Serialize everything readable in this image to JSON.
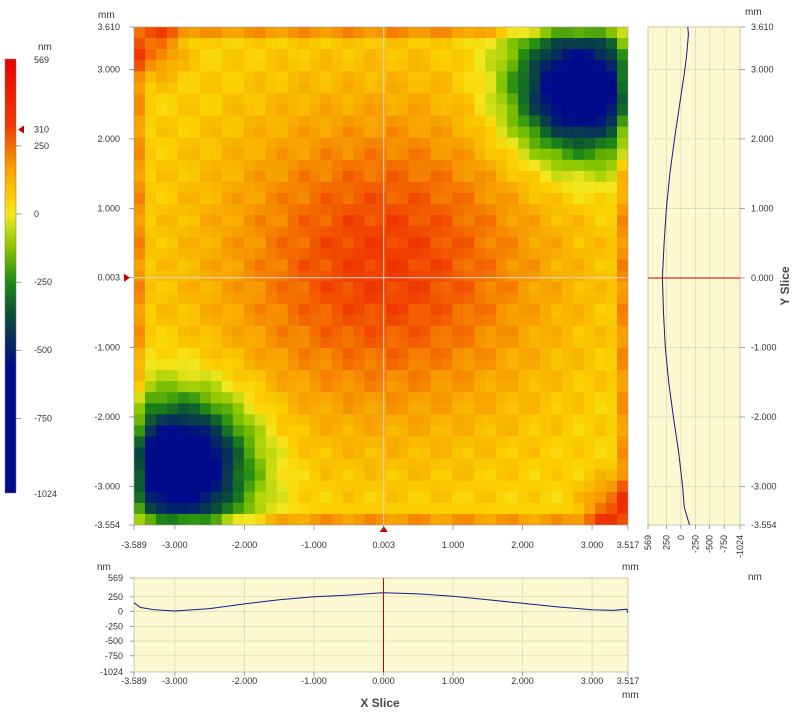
{
  "colors": {
    "panel_bg": "#fbf8d2",
    "profile_line": "#1a1a8a",
    "cursor_line": "#cc0000",
    "grid": "#d8d2a0",
    "axis": "#888888"
  },
  "colorbar": {
    "unit": "nm",
    "max_label": "569",
    "min_label": "-1024",
    "marker_label": "310",
    "ticks": [
      {
        "value": 250,
        "label": "250"
      },
      {
        "value": 0,
        "label": "0"
      },
      {
        "value": -250,
        "label": "-250"
      },
      {
        "value": -500,
        "label": "-500"
      },
      {
        "value": -750,
        "label": "-750"
      }
    ],
    "stops": [
      {
        "value": 569,
        "color": "#e60000"
      },
      {
        "value": 330,
        "color": "#f03a00"
      },
      {
        "value": 180,
        "color": "#f79a00"
      },
      {
        "value": 60,
        "color": "#fbd000"
      },
      {
        "value": 0,
        "color": "#f3e820"
      },
      {
        "value": -120,
        "color": "#8cc800"
      },
      {
        "value": -250,
        "color": "#1e8a14"
      },
      {
        "value": -380,
        "color": "#0a4a3a"
      },
      {
        "value": -560,
        "color": "#000a8a"
      },
      {
        "value": -1024,
        "color": "#000a8a"
      }
    ]
  },
  "chart_data": [
    {
      "type": "heatmap",
      "title": "",
      "xunit": "mm",
      "yunit": "mm",
      "xlim": [
        -3.589,
        3.517
      ],
      "ylim": [
        -3.554,
        3.61
      ],
      "zlim": [
        -1024,
        569
      ],
      "x_tick_labels": [
        "-3.589",
        "-3.000",
        "-2.000",
        "-1.000",
        "0.003",
        "1.000",
        "2.000",
        "3.000",
        "3.517"
      ],
      "y_tick_labels": [
        "3.610",
        "3.000",
        "2.000",
        "1.000",
        "0.003",
        "-1.000",
        "-2.000",
        "-3.000",
        "-3.554"
      ],
      "cursor": {
        "x": 0.003,
        "y": 0.003
      },
      "surface": {
        "center": {
          "x": 0.0,
          "y": 0.2,
          "z": 330
        },
        "plateau_z": 40,
        "low_regions": [
          {
            "x": -2.9,
            "y": -2.7,
            "z": -800
          },
          {
            "x": 2.8,
            "y": 2.7,
            "z": -760
          }
        ],
        "high_corners": [
          {
            "x": 3.3,
            "y": -3.3,
            "z": 280
          },
          {
            "x": -3.3,
            "y": 3.3,
            "z": 250
          }
        ]
      }
    },
    {
      "type": "line",
      "title": "X Slice",
      "xlabel": "mm",
      "ylabel": "nm",
      "xlim": [
        -3.589,
        3.517
      ],
      "ylim": [
        -1024,
        569
      ],
      "x_tick_labels": [
        "-3.589",
        "-3.000",
        "-2.000",
        "-1.000",
        "0.000",
        "1.000",
        "2.000",
        "3.000",
        "3.517"
      ],
      "y_tick_labels": [
        "569",
        "250",
        "0",
        "-250",
        "-500",
        "-750",
        "-1024"
      ],
      "x": [
        -3.589,
        -3.5,
        -3.3,
        -3.0,
        -2.5,
        -2.0,
        -1.5,
        -1.0,
        -0.5,
        0.0,
        0.5,
        1.0,
        1.5,
        2.0,
        2.5,
        3.0,
        3.3,
        3.5,
        3.517
      ],
      "y": [
        150,
        70,
        30,
        10,
        50,
        130,
        200,
        250,
        280,
        320,
        300,
        260,
        200,
        140,
        80,
        30,
        20,
        40,
        -20
      ]
    },
    {
      "type": "line",
      "title": "Y Slice",
      "xlabel": "nm",
      "ylabel": "mm",
      "xlim": [
        569,
        -1024
      ],
      "ylim": [
        -3.554,
        3.61
      ],
      "x_tick_labels": [
        "569",
        "250",
        "0",
        "-250",
        "-500",
        "-750",
        "-1024"
      ],
      "y_tick_labels": [
        "3.610",
        "3.000",
        "2.000",
        "1.000",
        "0.000",
        "-1.000",
        "-2.000",
        "-3.000",
        "-3.554"
      ],
      "y": [
        3.61,
        3.5,
        3.2,
        3.0,
        2.5,
        2.0,
        1.5,
        1.0,
        0.5,
        0.0,
        -0.5,
        -1.0,
        -1.5,
        -2.0,
        -2.5,
        -3.0,
        -3.3,
        -3.554
      ],
      "x": [
        -120,
        -130,
        -100,
        -70,
        20,
        110,
        190,
        250,
        290,
        320,
        300,
        270,
        210,
        130,
        40,
        -30,
        -60,
        -150
      ]
    }
  ]
}
